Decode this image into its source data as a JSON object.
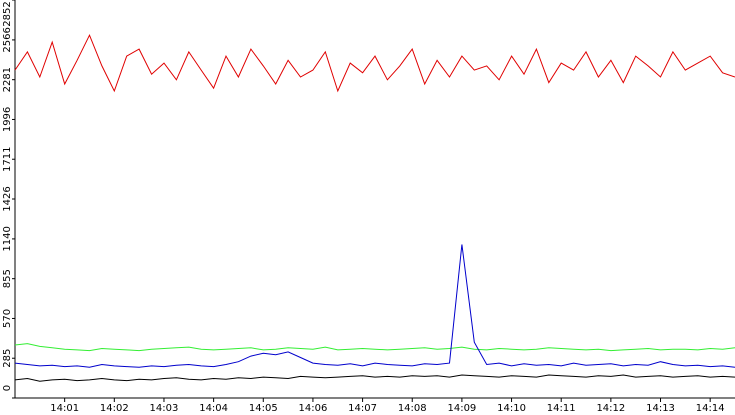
{
  "chart_data": {
    "type": "line",
    "categories": [
      null,
      null,
      null,
      null,
      "14:01",
      null,
      null,
      null,
      "14:02",
      null,
      null,
      null,
      "14:03",
      null,
      null,
      null,
      "14:04",
      null,
      null,
      null,
      "14:05",
      null,
      null,
      null,
      "14:06",
      null,
      null,
      null,
      "14:07",
      null,
      null,
      null,
      "14:08",
      null,
      null,
      null,
      "14:09",
      null,
      null,
      null,
      "14:10",
      null,
      null,
      null,
      "14:11",
      null,
      null,
      null,
      "14:12",
      null,
      null,
      null,
      "14:13",
      null,
      null,
      null,
      "14:14",
      null,
      null
    ],
    "ylim": [
      0,
      2852
    ],
    "yticks": [
      0,
      285,
      570,
      855,
      1140,
      1426,
      1711,
      1996,
      2281,
      2566,
      2852
    ],
    "series": [
      {
        "color": "#e00000",
        "values": [
          2350,
          2480,
          2300,
          2550,
          2250,
          2420,
          2600,
          2380,
          2200,
          2450,
          2500,
          2320,
          2400,
          2280,
          2480,
          2350,
          2220,
          2450,
          2300,
          2500,
          2380,
          2250,
          2420,
          2300,
          2350,
          2480,
          2200,
          2400,
          2330,
          2450,
          2280,
          2380,
          2500,
          2250,
          2420,
          2300,
          2450,
          2350,
          2380,
          2280,
          2450,
          2320,
          2500,
          2260,
          2400,
          2350,
          2480,
          2300,
          2420,
          2260,
          2450,
          2380,
          2300,
          2480,
          2350,
          2400,
          2450,
          2330,
          2300
        ]
      },
      {
        "color": "#33ee33",
        "values": [
          380,
          390,
          370,
          360,
          350,
          345,
          340,
          355,
          350,
          345,
          340,
          350,
          355,
          360,
          365,
          350,
          345,
          350,
          355,
          360,
          345,
          350,
          360,
          355,
          350,
          365,
          345,
          350,
          355,
          350,
          345,
          350,
          355,
          360,
          350,
          355,
          365,
          350,
          345,
          355,
          350,
          345,
          350,
          360,
          355,
          350,
          345,
          350,
          340,
          345,
          350,
          355,
          345,
          350,
          350,
          345,
          355,
          350,
          360
        ]
      },
      {
        "color": "#0000cc",
        "values": [
          250,
          240,
          230,
          235,
          225,
          230,
          220,
          240,
          230,
          225,
          220,
          230,
          225,
          235,
          240,
          230,
          225,
          240,
          260,
          300,
          320,
          310,
          330,
          290,
          250,
          240,
          235,
          245,
          230,
          250,
          240,
          235,
          230,
          245,
          240,
          250,
          1100,
          400,
          240,
          250,
          230,
          245,
          235,
          240,
          230,
          250,
          235,
          240,
          245,
          230,
          240,
          235,
          260,
          240,
          230,
          235,
          225,
          230,
          220
        ]
      },
      {
        "color": "#000000",
        "values": [
          130,
          140,
          120,
          130,
          135,
          125,
          130,
          140,
          130,
          125,
          135,
          130,
          140,
          145,
          135,
          130,
          140,
          135,
          145,
          140,
          150,
          145,
          140,
          155,
          150,
          145,
          150,
          155,
          160,
          150,
          155,
          150,
          160,
          155,
          160,
          150,
          165,
          160,
          155,
          150,
          160,
          155,
          150,
          165,
          160,
          155,
          150,
          160,
          155,
          165,
          150,
          155,
          160,
          150,
          155,
          160,
          150,
          155,
          150
        ]
      }
    ]
  }
}
